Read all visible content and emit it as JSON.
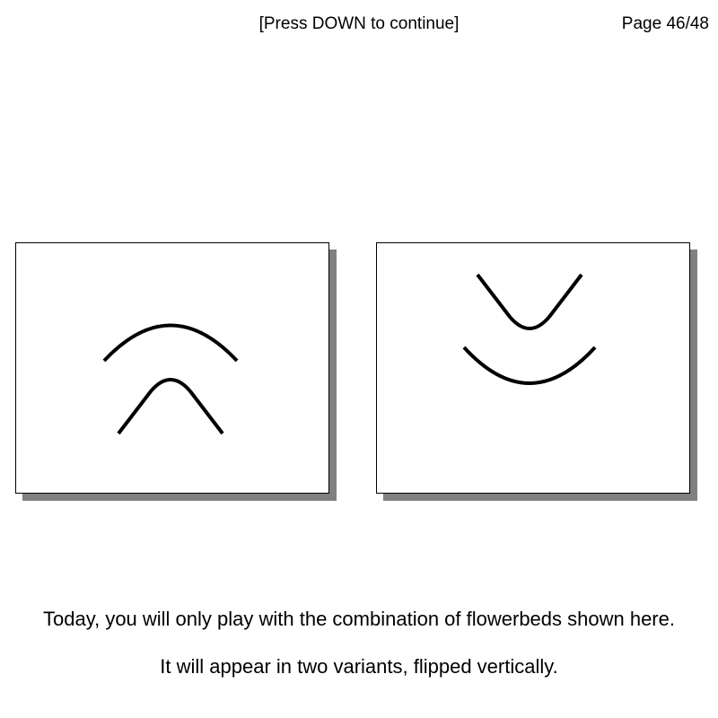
{
  "header": {
    "instruction": "[Press DOWN to continue]",
    "page_counter": "Page 46/48"
  },
  "panels": [
    {
      "name": "variant-upright",
      "orientation": "upright"
    },
    {
      "name": "variant-flipped",
      "orientation": "flipped-vertically"
    }
  ],
  "captions": {
    "line1": "Today, you will only play with the combination of flowerbeds shown here.",
    "line2": "It will appear in two variants, flipped vertically."
  },
  "colors": {
    "background": "#ffffff",
    "stroke": "#000000",
    "shadow": "#808080"
  }
}
